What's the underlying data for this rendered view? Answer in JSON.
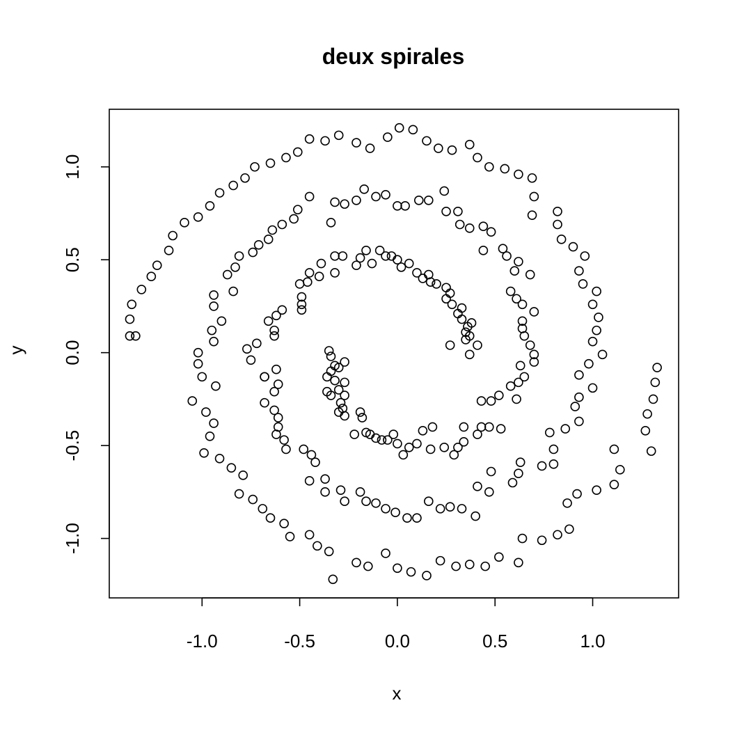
{
  "chart_data": {
    "type": "scatter",
    "title": "deux spirales",
    "xlabel": "x",
    "ylabel": "y",
    "xlim": [
      -1.475,
      1.44
    ],
    "ylim": [
      -1.32,
      1.31
    ],
    "xticks": [
      -1.0,
      -0.5,
      0.0,
      0.5,
      1.0
    ],
    "xtick_labels": [
      "-1.0",
      "-0.5",
      "0.0",
      "0.5",
      "1.0"
    ],
    "yticks": [
      -1.0,
      -0.5,
      0.0,
      0.5,
      1.0
    ],
    "ytick_labels": [
      "-1.0",
      "-0.5",
      "0.0",
      "0.5",
      "1.0"
    ],
    "grid": false,
    "legend": "none",
    "marker": "open-circle",
    "points": [
      [
        0.01,
        1.21
      ],
      [
        0.08,
        1.2
      ],
      [
        0.15,
        1.14
      ],
      [
        0.21,
        1.1
      ],
      [
        0.28,
        1.09
      ],
      [
        0.37,
        1.12
      ],
      [
        0.41,
        1.05
      ],
      [
        0.47,
        1.0
      ],
      [
        0.55,
        0.99
      ],
      [
        0.62,
        0.96
      ],
      [
        0.69,
        0.94
      ],
      [
        0.7,
        0.84
      ],
      [
        0.69,
        0.74
      ],
      [
        -0.05,
        1.16
      ],
      [
        -0.14,
        1.1
      ],
      [
        -0.21,
        1.13
      ],
      [
        -0.3,
        1.17
      ],
      [
        -0.37,
        1.14
      ],
      [
        -0.45,
        1.15
      ],
      [
        -0.51,
        1.08
      ],
      [
        -0.57,
        1.05
      ],
      [
        -0.65,
        1.02
      ],
      [
        -0.73,
        1.0
      ],
      [
        -0.78,
        0.94
      ],
      [
        -0.84,
        0.9
      ],
      [
        -0.91,
        0.86
      ],
      [
        -0.96,
        0.79
      ],
      [
        -1.02,
        0.73
      ],
      [
        -1.09,
        0.7
      ],
      [
        -1.15,
        0.63
      ],
      [
        -1.17,
        0.55
      ],
      [
        -1.23,
        0.47
      ],
      [
        -1.26,
        0.41
      ],
      [
        -1.31,
        0.34
      ],
      [
        -1.36,
        0.26
      ],
      [
        -1.37,
        0.18
      ],
      [
        -1.37,
        0.09
      ],
      [
        0.82,
        0.76
      ],
      [
        0.82,
        0.69
      ],
      [
        0.84,
        0.61
      ],
      [
        0.9,
        0.57
      ],
      [
        0.93,
        0.44
      ],
      [
        0.96,
        0.52
      ],
      [
        0.95,
        0.37
      ],
      [
        1.02,
        0.33
      ],
      [
        1.0,
        0.26
      ],
      [
        1.03,
        0.19
      ],
      [
        1.02,
        0.12
      ],
      [
        1.0,
        0.06
      ],
      [
        1.05,
        -0.01
      ],
      [
        0.98,
        -0.06
      ],
      [
        0.93,
        -0.12
      ],
      [
        1.0,
        -0.19
      ],
      [
        0.93,
        -0.24
      ],
      [
        0.91,
        -0.29
      ],
      [
        0.93,
        -0.37
      ],
      [
        0.86,
        -0.41
      ],
      [
        0.8,
        -0.52
      ],
      [
        0.78,
        -0.43
      ],
      [
        0.8,
        -0.6
      ],
      [
        0.74,
        -0.61
      ],
      [
        0.63,
        -0.59
      ],
      [
        0.62,
        -0.65
      ],
      [
        0.59,
        -0.7
      ],
      [
        0.48,
        -0.64
      ],
      [
        0.47,
        -0.75
      ],
      [
        0.41,
        -0.72
      ],
      [
        0.4,
        -0.88
      ],
      [
        0.33,
        -0.84
      ],
      [
        0.27,
        -0.83
      ],
      [
        0.22,
        -0.84
      ],
      [
        0.16,
        -0.8
      ],
      [
        0.1,
        -0.89
      ],
      [
        0.05,
        -0.89
      ],
      [
        -0.01,
        -0.86
      ],
      [
        -0.06,
        -0.84
      ],
      [
        -0.11,
        -0.81
      ],
      [
        -0.16,
        -0.8
      ],
      [
        -0.19,
        -0.75
      ],
      [
        -0.27,
        -0.8
      ],
      [
        -0.29,
        -0.74
      ],
      [
        -0.37,
        -0.75
      ],
      [
        -0.37,
        -0.68
      ],
      [
        -0.45,
        -0.69
      ],
      [
        -0.42,
        -0.59
      ],
      [
        -0.44,
        -0.55
      ],
      [
        -0.48,
        -0.52
      ],
      [
        -0.57,
        -0.52
      ],
      [
        -0.58,
        -0.47
      ],
      [
        -0.62,
        -0.44
      ],
      [
        -0.61,
        -0.4
      ],
      [
        -0.61,
        -0.35
      ],
      [
        -0.63,
        -0.31
      ],
      [
        -0.68,
        -0.27
      ],
      [
        -0.63,
        -0.21
      ],
      [
        -0.61,
        -0.17
      ],
      [
        -0.68,
        -0.13
      ],
      [
        -0.62,
        -0.09
      ],
      [
        -0.63,
        0.09
      ],
      [
        -0.63,
        0.12
      ],
      [
        -0.66,
        0.17
      ],
      [
        -0.62,
        0.2
      ],
      [
        -0.59,
        0.23
      ],
      [
        -0.49,
        0.23
      ],
      [
        -0.49,
        0.26
      ],
      [
        -0.49,
        0.3
      ],
      [
        -0.5,
        0.37
      ],
      [
        -0.46,
        0.38
      ],
      [
        -0.45,
        0.43
      ],
      [
        -0.4,
        0.41
      ],
      [
        -0.39,
        0.48
      ],
      [
        -0.32,
        0.43
      ],
      [
        -0.32,
        0.52
      ],
      [
        -0.28,
        0.52
      ],
      [
        -0.21,
        0.47
      ],
      [
        -0.19,
        0.51
      ],
      [
        -0.16,
        0.55
      ],
      [
        -0.13,
        0.48
      ],
      [
        -0.09,
        0.55
      ],
      [
        -0.06,
        0.52
      ],
      [
        -0.03,
        0.52
      ],
      [
        0.0,
        0.5
      ],
      [
        0.02,
        0.46
      ],
      [
        0.06,
        0.48
      ],
      [
        0.1,
        0.43
      ],
      [
        0.13,
        0.4
      ],
      [
        0.16,
        0.42
      ],
      [
        0.17,
        0.38
      ],
      [
        0.2,
        0.37
      ],
      [
        0.25,
        0.35
      ],
      [
        0.27,
        0.32
      ],
      [
        0.25,
        0.29
      ],
      [
        0.28,
        0.26
      ],
      [
        0.31,
        0.21
      ],
      [
        0.33,
        0.24
      ],
      [
        0.33,
        0.18
      ],
      [
        0.35,
        0.11
      ],
      [
        0.36,
        0.14
      ],
      [
        0.38,
        0.16
      ],
      [
        0.37,
        0.09
      ],
      [
        0.35,
        0.07
      ],
      [
        0.41,
        0.04
      ],
      [
        0.27,
        0.04
      ],
      [
        0.37,
        -0.01
      ]
    ],
    "points2": [
      [
        -1.34,
        0.09
      ],
      [
        -1.02,
        0.0
      ],
      [
        -1.02,
        -0.06
      ],
      [
        -1.0,
        -0.13
      ],
      [
        -1.05,
        -0.26
      ],
      [
        -0.98,
        -0.32
      ],
      [
        -0.94,
        -0.38
      ],
      [
        -0.96,
        -0.45
      ],
      [
        -0.99,
        -0.54
      ],
      [
        -0.91,
        -0.57
      ],
      [
        -0.85,
        -0.62
      ],
      [
        -0.79,
        -0.66
      ],
      [
        -0.81,
        -0.76
      ],
      [
        -0.74,
        -0.79
      ],
      [
        -0.69,
        -0.84
      ],
      [
        -0.65,
        -0.89
      ],
      [
        -0.58,
        -0.92
      ],
      [
        -0.55,
        -0.99
      ],
      [
        -0.45,
        -0.98
      ],
      [
        -0.41,
        -1.04
      ],
      [
        -0.35,
        -1.07
      ],
      [
        -0.33,
        -1.22
      ],
      [
        -0.21,
        -1.13
      ],
      [
        -0.15,
        -1.15
      ],
      [
        -0.06,
        -1.08
      ],
      [
        0.0,
        -1.16
      ],
      [
        0.07,
        -1.18
      ],
      [
        0.15,
        -1.2
      ],
      [
        0.22,
        -1.12
      ],
      [
        0.3,
        -1.15
      ],
      [
        0.37,
        -1.14
      ],
      [
        0.45,
        -1.15
      ],
      [
        0.52,
        -1.1
      ],
      [
        0.62,
        -1.13
      ],
      [
        0.64,
        -1.0
      ],
      [
        0.74,
        -1.01
      ],
      [
        0.82,
        -0.98
      ],
      [
        0.88,
        -0.95
      ],
      [
        0.87,
        -0.81
      ],
      [
        0.92,
        -0.76
      ],
      [
        1.02,
        -0.74
      ],
      [
        1.11,
        -0.71
      ],
      [
        1.14,
        -0.63
      ],
      [
        1.11,
        -0.52
      ],
      [
        1.27,
        -0.42
      ],
      [
        1.28,
        -0.33
      ],
      [
        1.31,
        -0.25
      ],
      [
        1.3,
        -0.53
      ],
      [
        1.32,
        -0.16
      ],
      [
        1.33,
        -0.08
      ],
      [
        -0.95,
        0.12
      ],
      [
        -0.94,
        0.06
      ],
      [
        -0.93,
        -0.18
      ],
      [
        -0.9,
        0.17
      ],
      [
        -0.94,
        0.25
      ],
      [
        -0.94,
        0.31
      ],
      [
        -0.87,
        0.42
      ],
      [
        -0.83,
        0.46
      ],
      [
        -0.84,
        0.33
      ],
      [
        -0.81,
        0.52
      ],
      [
        -0.74,
        0.54
      ],
      [
        -0.71,
        0.58
      ],
      [
        -0.66,
        0.61
      ],
      [
        -0.64,
        0.66
      ],
      [
        -0.59,
        0.69
      ],
      [
        -0.53,
        0.72
      ],
      [
        -0.51,
        0.77
      ],
      [
        -0.45,
        0.84
      ],
      [
        -0.34,
        0.7
      ],
      [
        -0.32,
        0.81
      ],
      [
        -0.27,
        0.8
      ],
      [
        -0.21,
        0.82
      ],
      [
        -0.17,
        0.88
      ],
      [
        -0.11,
        0.84
      ],
      [
        -0.06,
        0.85
      ],
      [
        0.0,
        0.79
      ],
      [
        0.04,
        0.79
      ],
      [
        0.11,
        0.82
      ],
      [
        0.16,
        0.82
      ],
      [
        0.24,
        0.87
      ],
      [
        0.25,
        0.76
      ],
      [
        0.31,
        0.76
      ],
      [
        0.32,
        0.69
      ],
      [
        0.37,
        0.67
      ],
      [
        0.44,
        0.68
      ],
      [
        0.48,
        0.65
      ],
      [
        0.44,
        0.55
      ],
      [
        0.54,
        0.56
      ],
      [
        0.56,
        0.52
      ],
      [
        0.62,
        0.49
      ],
      [
        0.6,
        0.44
      ],
      [
        0.68,
        0.42
      ],
      [
        0.58,
        0.33
      ],
      [
        0.61,
        0.29
      ],
      [
        0.64,
        0.26
      ],
      [
        0.7,
        0.22
      ],
      [
        0.64,
        0.17
      ],
      [
        0.64,
        0.13
      ],
      [
        0.65,
        0.09
      ],
      [
        0.68,
        0.04
      ],
      [
        0.7,
        -0.01
      ],
      [
        0.7,
        -0.05
      ],
      [
        0.63,
        -0.07
      ],
      [
        0.65,
        -0.13
      ],
      [
        0.62,
        -0.16
      ],
      [
        0.58,
        -0.18
      ],
      [
        0.52,
        -0.23
      ],
      [
        0.48,
        -0.26
      ],
      [
        0.43,
        -0.26
      ],
      [
        0.61,
        -0.25
      ],
      [
        0.53,
        -0.41
      ],
      [
        0.47,
        -0.4
      ],
      [
        0.43,
        -0.4
      ],
      [
        0.34,
        -0.4
      ],
      [
        0.41,
        -0.44
      ],
      [
        0.34,
        -0.48
      ],
      [
        0.31,
        -0.51
      ],
      [
        0.29,
        -0.55
      ],
      [
        0.24,
        -0.51
      ],
      [
        0.18,
        -0.4
      ],
      [
        0.13,
        -0.42
      ],
      [
        0.17,
        -0.52
      ],
      [
        0.1,
        -0.49
      ],
      [
        0.06,
        -0.51
      ],
      [
        0.03,
        -0.55
      ],
      [
        0.0,
        -0.49
      ],
      [
        -0.02,
        -0.44
      ],
      [
        -0.05,
        -0.47
      ],
      [
        -0.08,
        -0.47
      ],
      [
        -0.11,
        -0.46
      ],
      [
        -0.14,
        -0.44
      ],
      [
        -0.16,
        -0.43
      ],
      [
        -0.19,
        -0.32
      ],
      [
        -0.18,
        -0.35
      ],
      [
        -0.22,
        -0.44
      ],
      [
        -0.27,
        -0.34
      ],
      [
        -0.28,
        -0.3
      ],
      [
        -0.29,
        -0.27
      ],
      [
        -0.27,
        -0.23
      ],
      [
        -0.3,
        -0.2
      ],
      [
        -0.34,
        -0.23
      ],
      [
        -0.36,
        -0.21
      ],
      [
        -0.32,
        -0.15
      ],
      [
        -0.36,
        -0.13
      ],
      [
        -0.34,
        -0.1
      ],
      [
        -0.32,
        -0.07
      ],
      [
        -0.3,
        -0.08
      ],
      [
        -0.27,
        -0.05
      ],
      [
        -0.34,
        -0.02
      ],
      [
        -0.35,
        0.01
      ],
      [
        -0.3,
        -0.32
      ],
      [
        -0.27,
        -0.16
      ],
      [
        -0.77,
        0.02
      ],
      [
        -0.72,
        0.05
      ],
      [
        -0.75,
        -0.04
      ],
      [
        -0.68,
        -0.13
      ]
    ]
  }
}
